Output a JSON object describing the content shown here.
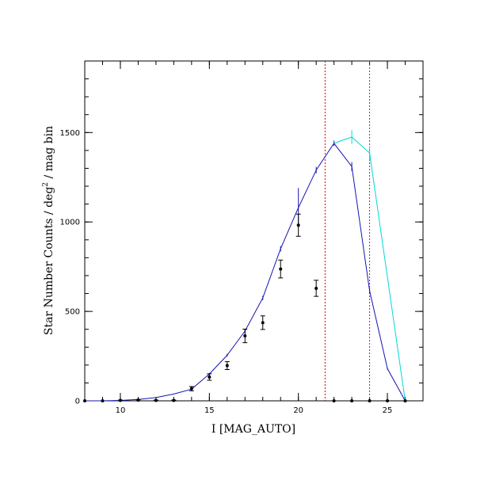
{
  "chart_data": {
    "type": "line",
    "xlabel": "I [MAG_AUTO]",
    "ylabel_main": "Star Number Counts / deg",
    "ylabel_sup": "2",
    "ylabel_tail": " / mag bin",
    "xlim": [
      8,
      27
    ],
    "ylim": [
      0,
      1900
    ],
    "x_ticks": [
      10,
      15,
      20,
      25
    ],
    "y_ticks": [
      0,
      500,
      1000,
      1500
    ],
    "x_minor_step": 1,
    "y_minor_step": 100,
    "grid": false,
    "series": [
      {
        "style": "points-with-errorbars",
        "color": "#000000",
        "x": [
          8,
          9,
          10,
          11,
          12,
          13,
          14,
          15,
          16,
          17,
          18,
          19,
          20,
          21,
          22,
          23,
          24,
          25,
          26
        ],
        "y": [
          0,
          0,
          2,
          4,
          2,
          2,
          68,
          133,
          197,
          363,
          437,
          737,
          982,
          629,
          0,
          0,
          0,
          0,
          0
        ],
        "err": [
          0,
          0,
          2,
          3,
          2,
          2,
          12,
          18,
          22,
          38,
          38,
          50,
          62,
          45,
          0,
          0,
          0,
          0,
          0
        ]
      },
      {
        "style": "line-with-errorbars",
        "color": "#1515b3",
        "x": [
          8,
          9,
          10,
          11,
          12,
          13,
          14,
          15,
          16,
          17,
          18,
          19,
          20,
          21,
          22,
          23,
          24,
          25,
          26
        ],
        "y": [
          0,
          0,
          2,
          8,
          18,
          38,
          65,
          150,
          255,
          390,
          575,
          850,
          1080,
          1290,
          1440,
          1310,
          615,
          180,
          0
        ],
        "err": [
          0,
          0,
          0,
          0,
          0,
          0,
          4,
          6,
          8,
          10,
          12,
          15,
          110,
          18,
          15,
          25,
          15,
          6,
          0
        ]
      },
      {
        "style": "line-with-errorbars",
        "color": "#00d8d8",
        "x": [
          22,
          23,
          24,
          26
        ],
        "y": [
          1440,
          1475,
          1385,
          0
        ],
        "err": [
          0,
          38,
          38,
          0
        ]
      }
    ],
    "vlines": [
      {
        "x": 21.5,
        "color": "#e00000",
        "style": "dotted"
      },
      {
        "x": 24,
        "color": "#c000c0",
        "style": "dotted"
      }
    ]
  }
}
